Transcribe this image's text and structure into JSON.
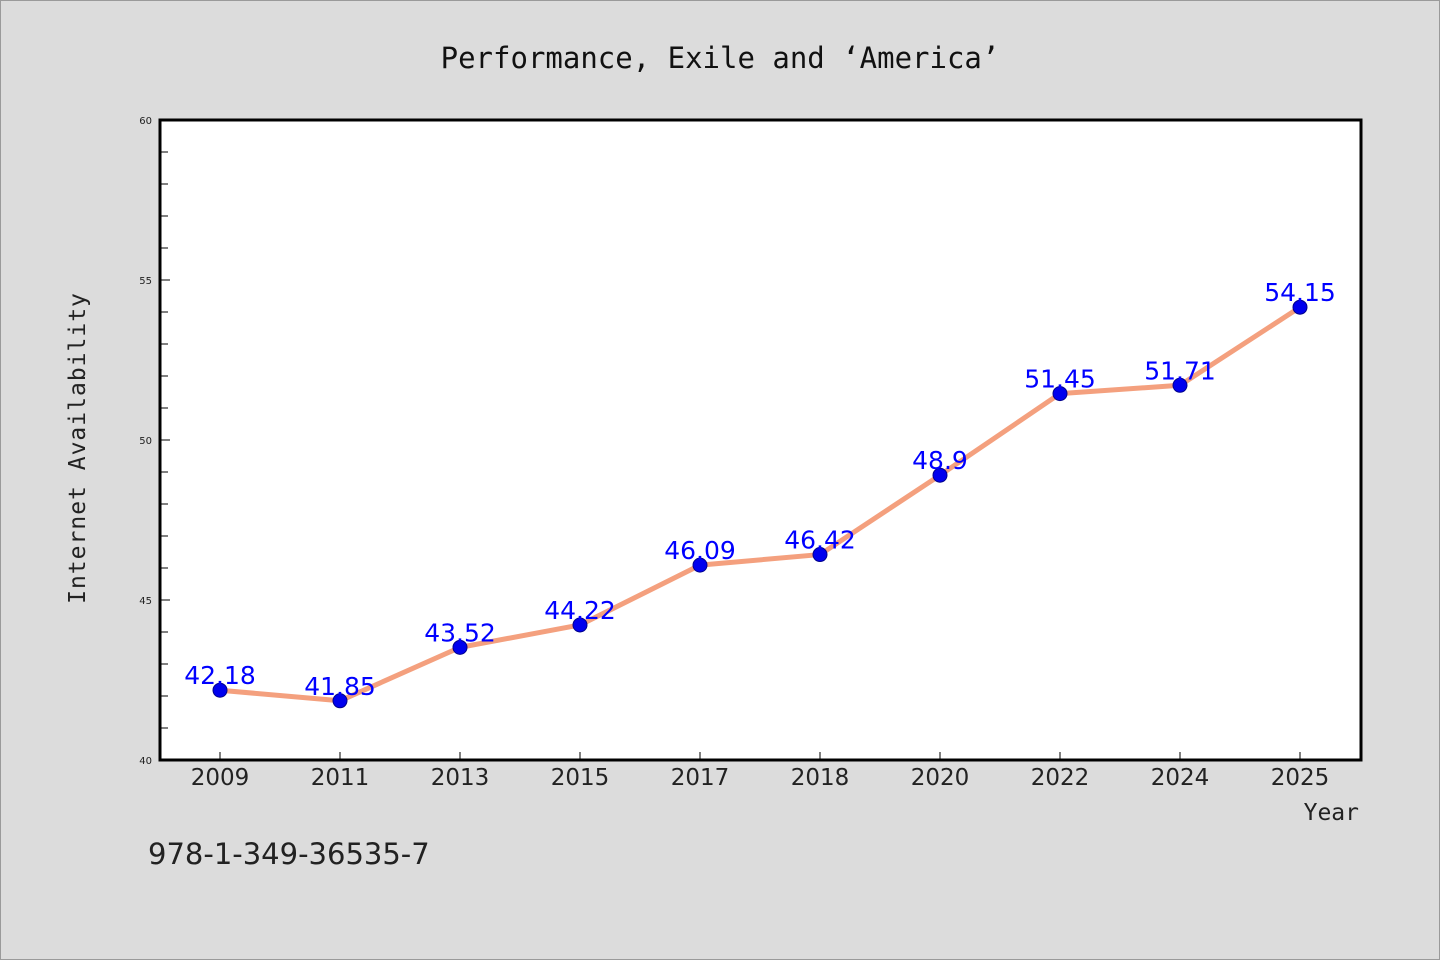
{
  "chart_data": {
    "type": "line",
    "title": "Performance, Exile and ‘America’",
    "xlabel": "Year",
    "ylabel": "Internet Availability",
    "categories": [
      "2009",
      "2011",
      "2013",
      "2015",
      "2017",
      "2018",
      "2020",
      "2022",
      "2024",
      "2025"
    ],
    "series": [
      {
        "values": [
          42.18,
          41.85,
          43.52,
          44.22,
          46.09,
          46.42,
          48.9,
          51.45,
          51.71,
          54.15
        ]
      }
    ],
    "data_labels": [
      "42.18",
      "41.85",
      "43.52",
      "44.22",
      "46.09",
      "46.42",
      "48.9",
      "51.45",
      "51.71",
      "54.15"
    ],
    "ylim": [
      40,
      60
    ],
    "yticks": [
      "40",
      "45",
      "50",
      "55",
      "60"
    ],
    "grid": false,
    "legend": "none",
    "colors": {
      "line": "#f4a07e",
      "marker": "#0000ee",
      "label": "#0000ff",
      "background": "#dcdcdc",
      "plot": "#ffffff"
    }
  },
  "footer": {
    "isbn": "978-1-349-36535-7"
  }
}
